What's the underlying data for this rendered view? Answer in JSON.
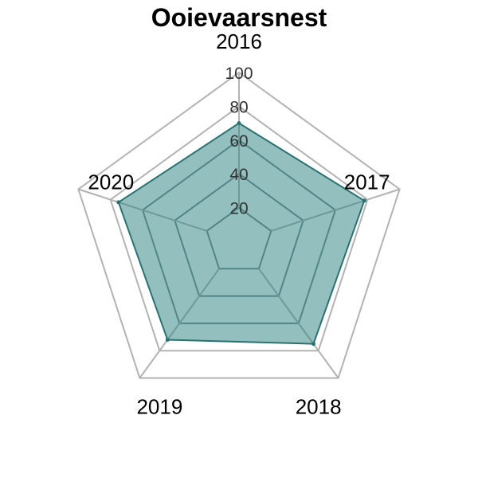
{
  "chart_data": {
    "type": "radar",
    "title": "Ooievaarsnest",
    "categories": [
      "2016",
      "2017",
      "2018",
      "2019",
      "2020"
    ],
    "series": [
      {
        "values": [
          70,
          78,
          75,
          72,
          75
        ]
      }
    ],
    "range": [
      0,
      100
    ],
    "ticks": [
      20,
      40,
      60,
      80,
      100
    ],
    "grid": true,
    "colors": {
      "fill": "#2a7f7f",
      "stroke": "#2a7272",
      "grid_outer": "#b3b3b3",
      "grid_inner": "#7a8a8a"
    }
  }
}
